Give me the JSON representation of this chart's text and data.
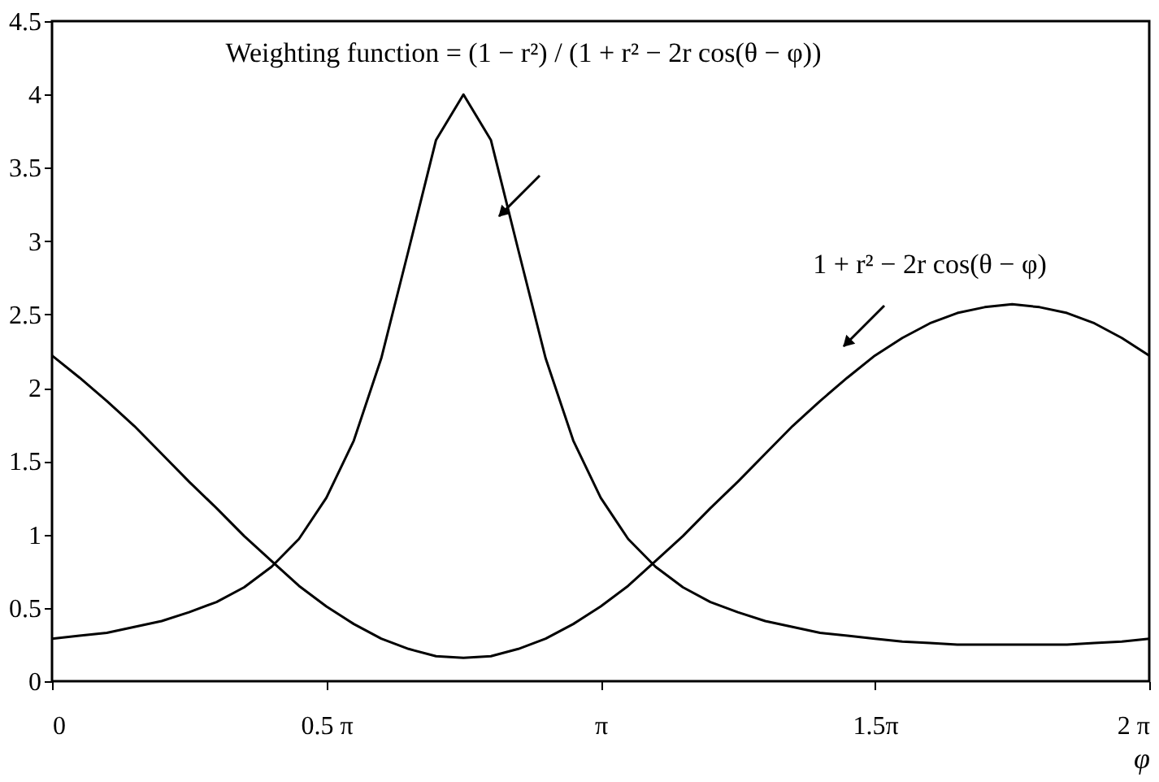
{
  "chart_data": {
    "type": "line",
    "x": [
      0,
      0.157,
      0.314,
      0.471,
      0.628,
      0.785,
      0.942,
      1.1,
      1.257,
      1.414,
      1.571,
      1.728,
      1.885,
      2.042,
      2.199,
      2.356,
      2.513,
      2.67,
      2.827,
      2.985,
      3.142,
      3.299,
      3.456,
      3.613,
      3.77,
      3.927,
      4.084,
      4.241,
      4.398,
      4.555,
      4.712,
      4.869,
      5.027,
      5.184,
      5.341,
      5.498,
      5.655,
      5.812,
      5.969,
      6.126,
      6.283
    ],
    "series": [
      {
        "color": "#000000",
        "values": [
          0.29,
          0.31,
          0.33,
          0.37,
          0.41,
          0.47,
          0.54,
          0.64,
          0.78,
          0.97,
          1.25,
          1.64,
          2.2,
          2.94,
          3.69,
          4.0,
          3.69,
          2.94,
          2.2,
          1.64,
          1.25,
          0.97,
          0.78,
          0.64,
          0.54,
          0.47,
          0.41,
          0.37,
          0.33,
          0.31,
          0.29,
          0.27,
          0.26,
          0.25,
          0.25,
          0.25,
          0.25,
          0.25,
          0.26,
          0.27,
          0.29
        ]
      },
      {
        "color": "#000000",
        "values": [
          2.22,
          2.07,
          1.91,
          1.74,
          1.55,
          1.36,
          1.18,
          0.99,
          0.82,
          0.65,
          0.51,
          0.39,
          0.29,
          0.22,
          0.17,
          0.16,
          0.17,
          0.22,
          0.29,
          0.39,
          0.51,
          0.65,
          0.82,
          0.99,
          1.18,
          1.36,
          1.55,
          1.74,
          1.91,
          2.07,
          2.22,
          2.34,
          2.44,
          2.51,
          2.55,
          2.57,
          2.55,
          2.51,
          2.44,
          2.34,
          2.22
        ]
      }
    ],
    "xlabel": "φ",
    "xlim": [
      0,
      6.283
    ],
    "xticks": [
      0,
      {
        "value": 1.571,
        "label": "0.5 π"
      },
      {
        "value": 3.142,
        "label": "π"
      },
      {
        "value": 4.712,
        "label": "1.5π"
      },
      {
        "value": 6.283,
        "label": "2 π"
      }
    ],
    "ylim": [
      0,
      4.5
    ],
    "yticks": [
      0,
      0.5,
      1,
      1.5,
      2,
      2.5,
      3,
      3.5,
      4,
      4.5
    ],
    "grid": false,
    "marker": "none",
    "line_style": "solid",
    "annotations": [
      "Weighting function = (1 − r²) / (1 + r² − 2r cos(θ − φ))",
      "1 + r² − 2r cos(θ − φ)"
    ]
  }
}
